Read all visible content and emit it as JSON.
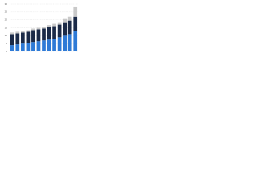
{
  "chart_data": {
    "type": "stacked_bar",
    "categories": [
      null,
      null,
      null,
      null,
      null,
      null,
      null,
      null,
      null,
      null,
      null,
      null,
      null
    ],
    "series": [
      {
        "color": "#2e7ad6",
        "values": [
          4,
          4.5,
          5,
          5.5,
          6,
          6.5,
          7,
          7.5,
          8,
          9,
          10,
          11,
          13
        ]
      },
      {
        "color": "#1b2a47",
        "values": [
          7,
          7,
          7,
          7,
          7.5,
          7.5,
          7.5,
          8,
          8,
          8,
          8.5,
          8.5,
          9
        ]
      },
      {
        "color": "#c9c9c9",
        "values": [
          1,
          1,
          1,
          1,
          1,
          1,
          1.2,
          1.2,
          1.5,
          1.5,
          2,
          2.5,
          6
        ]
      }
    ],
    "ylim": [
      0,
      30
    ],
    "yticks": [
      0,
      5,
      10,
      15,
      20,
      25,
      30
    ],
    "grid": true
  }
}
